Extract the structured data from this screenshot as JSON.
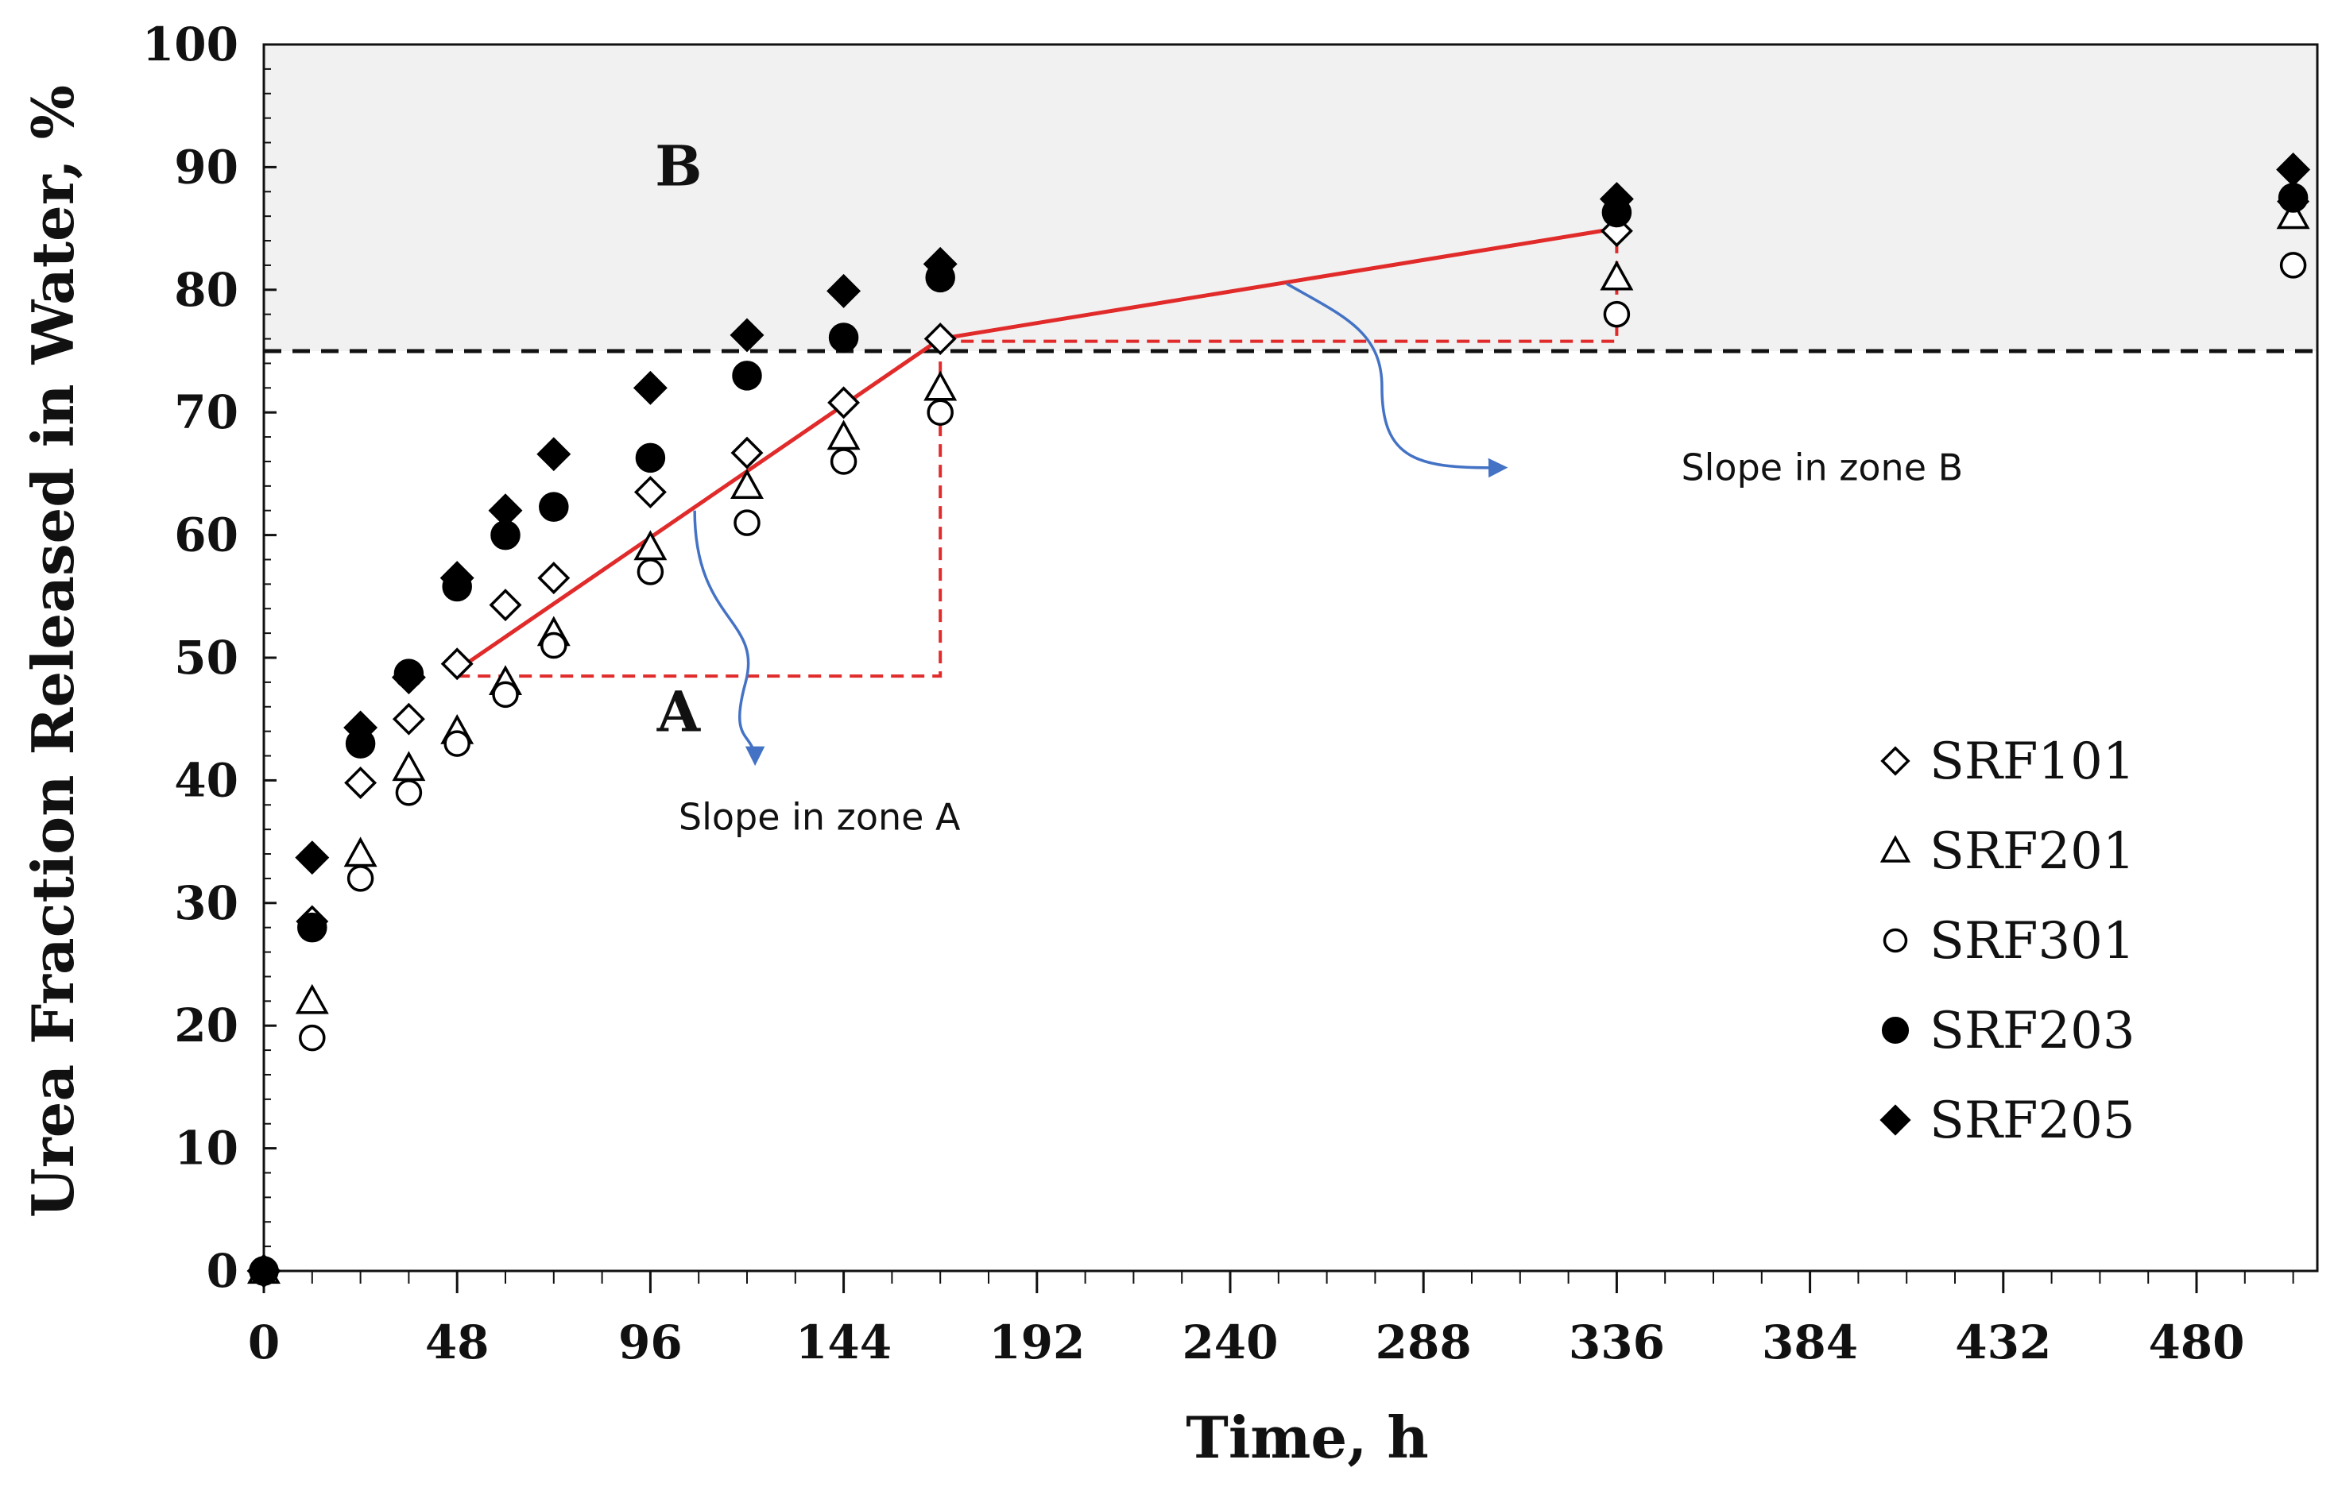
{
  "chart_data": {
    "type": "scatter",
    "title": "",
    "xlabel": "Time, h",
    "ylabel": "Urea Fraction Released in Water,  %",
    "xlim": [
      0,
      510
    ],
    "ylim": [
      0,
      100
    ],
    "x_ticks": [
      0,
      48,
      96,
      144,
      192,
      240,
      288,
      336,
      384,
      432,
      480
    ],
    "y_ticks": [
      0,
      10,
      20,
      30,
      40,
      50,
      60,
      70,
      80,
      90,
      100
    ],
    "x_minor_step": 12,
    "y_minor_step": 2,
    "threshold": 75,
    "zones": {
      "upper": "B",
      "lower": "A"
    },
    "colors": {
      "shade": "#f1f1f1",
      "red": "#e12b2b",
      "arrow": "#4472c4",
      "marker": "#000000"
    },
    "series": [
      {
        "name": "SRF101",
        "marker": "diamond-open",
        "points": [
          [
            0,
            0
          ],
          [
            12,
            28.5
          ],
          [
            24,
            39.8
          ],
          [
            36,
            45
          ],
          [
            48,
            49.5
          ],
          [
            60,
            54.3
          ],
          [
            72,
            56.5
          ],
          [
            96,
            63.5
          ],
          [
            120,
            66.7
          ],
          [
            144,
            70.8
          ],
          [
            168,
            76
          ],
          [
            336,
            84.8
          ],
          [
            504,
            87.2
          ]
        ]
      },
      {
        "name": "SRF201",
        "marker": "triangle-open",
        "points": [
          [
            0,
            0
          ],
          [
            12,
            22
          ],
          [
            24,
            34
          ],
          [
            36,
            41
          ],
          [
            48,
            44
          ],
          [
            60,
            48
          ],
          [
            72,
            52
          ],
          [
            96,
            59
          ],
          [
            120,
            64
          ],
          [
            144,
            68
          ],
          [
            168,
            72
          ],
          [
            336,
            81
          ],
          [
            504,
            86
          ]
        ]
      },
      {
        "name": "SRF301",
        "marker": "circle-open",
        "points": [
          [
            0,
            0
          ],
          [
            12,
            19
          ],
          [
            24,
            32
          ],
          [
            36,
            39
          ],
          [
            48,
            43
          ],
          [
            60,
            47
          ],
          [
            72,
            51
          ],
          [
            96,
            57
          ],
          [
            120,
            61
          ],
          [
            144,
            66
          ],
          [
            168,
            70
          ],
          [
            336,
            78
          ],
          [
            504,
            82
          ]
        ]
      },
      {
        "name": "SRF203",
        "marker": "circle-filled",
        "points": [
          [
            0,
            0
          ],
          [
            12,
            28
          ],
          [
            24,
            43
          ],
          [
            36,
            48.7
          ],
          [
            48,
            55.8
          ],
          [
            60,
            60
          ],
          [
            72,
            62.3
          ],
          [
            96,
            66.3
          ],
          [
            120,
            73
          ],
          [
            144,
            76.1
          ],
          [
            168,
            81
          ],
          [
            336,
            86.3
          ],
          [
            504,
            87.5
          ]
        ]
      },
      {
        "name": "SRF205",
        "marker": "diamond-filled",
        "points": [
          [
            0,
            0
          ],
          [
            12,
            33.7
          ],
          [
            24,
            44.3
          ],
          [
            36,
            48.4
          ],
          [
            48,
            56.5
          ],
          [
            60,
            62
          ],
          [
            72,
            66.6
          ],
          [
            96,
            72
          ],
          [
            120,
            76.3
          ],
          [
            144,
            79.9
          ],
          [
            168,
            82.1
          ],
          [
            336,
            87.4
          ],
          [
            504,
            89.8
          ]
        ]
      }
    ],
    "fit_lines": [
      {
        "name": "zone A fit",
        "points": [
          [
            48,
            49
          ],
          [
            168,
            76
          ]
        ]
      },
      {
        "name": "zone B fit",
        "points": [
          [
            168,
            76
          ],
          [
            336,
            85
          ]
        ]
      }
    ],
    "slope_triangles": [
      {
        "zone": "A",
        "from": [
          48,
          48.5
        ],
        "corner": [
          168,
          48.5
        ],
        "to": [
          168,
          76
        ]
      },
      {
        "zone": "B",
        "from": [
          168,
          75.8
        ],
        "corner": [
          336,
          75.8
        ],
        "to": [
          336,
          85
        ]
      }
    ],
    "annotations": [
      {
        "text": "Slope in zone A",
        "arrow_from": [
          107,
          62
        ],
        "arrow_to": [
          122,
          41.5
        ],
        "text_at": [
          138,
          37
        ]
      },
      {
        "text": "Slope in zone B",
        "arrow_from": [
          254,
          80.5
        ],
        "arrow_to": [
          308,
          65.5
        ],
        "text_at": [
          352,
          65.5
        ]
      }
    ],
    "legend_position": "right-center"
  }
}
